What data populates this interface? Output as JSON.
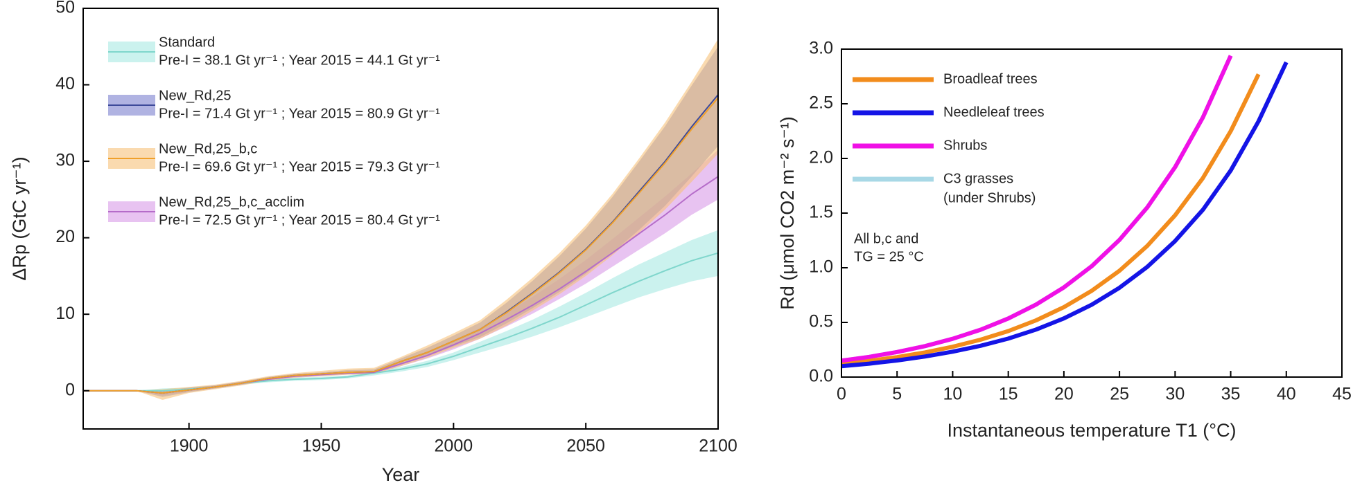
{
  "chart_data": [
    {
      "type": "line",
      "x_label": "Year",
      "y_label": "ΔRp (GtC yr⁻¹)",
      "xlim": [
        1860,
        2100
      ],
      "xticks": [
        1900,
        1950,
        2000,
        2050,
        2100
      ],
      "ylim": [
        -5,
        50
      ],
      "yticks": [
        0,
        10,
        20,
        30,
        40,
        50
      ],
      "x": [
        1860,
        1870,
        1880,
        1890,
        1900,
        1910,
        1920,
        1930,
        1940,
        1950,
        1960,
        1970,
        1980,
        1990,
        2000,
        2010,
        2020,
        2030,
        2040,
        2050,
        2060,
        2070,
        2080,
        2090,
        2100
      ],
      "series": [
        {
          "name": "Standard",
          "description": "Pre-I = 38.1 Gt yr⁻¹ ; Year 2015 = 44.1 Gt yr⁻¹",
          "color": "#7fd6cc",
          "band_color": "#a9e9e3",
          "values": [
            0,
            0,
            0,
            0,
            0.2,
            0.5,
            1.0,
            1.3,
            1.5,
            1.6,
            1.8,
            2.3,
            2.8,
            3.5,
            4.5,
            5.7,
            6.9,
            8.2,
            9.6,
            11.2,
            12.8,
            14.3,
            15.7,
            17.0,
            18.0
          ],
          "lower": [
            0,
            0,
            0,
            -0.5,
            0,
            0.3,
            0.8,
            1.1,
            1.3,
            1.4,
            1.6,
            2.0,
            2.5,
            3.1,
            4.0,
            5.0,
            6.0,
            7.1,
            8.3,
            9.6,
            10.9,
            12.2,
            13.3,
            14.3,
            15.0
          ],
          "upper": [
            0,
            0,
            0,
            0.3,
            0.4,
            0.7,
            1.2,
            1.5,
            1.7,
            1.8,
            2.0,
            2.6,
            3.1,
            3.9,
            5.0,
            6.4,
            7.8,
            9.3,
            11.0,
            12.8,
            14.7,
            16.5,
            18.1,
            19.7,
            21.0
          ]
        },
        {
          "name": "New_Rd,25_b,c_acclim",
          "description": "Pre-I = 72.5 Gt yr⁻¹ ; Year 2015 = 80.4 Gt yr⁻¹",
          "color": "#b56cc9",
          "band_color": "#d99be8",
          "values": [
            0,
            0,
            0,
            -0.3,
            0.1,
            0.5,
            1.0,
            1.5,
            1.9,
            2.1,
            2.3,
            2.4,
            3.5,
            4.6,
            6.0,
            7.5,
            9.3,
            11.2,
            13.3,
            15.6,
            18.0,
            20.5,
            23.0,
            25.7,
            28.0
          ],
          "lower": [
            0,
            0,
            0,
            -0.6,
            -0.1,
            0.3,
            0.8,
            1.3,
            1.7,
            1.9,
            2.1,
            2.2,
            3.2,
            4.2,
            5.4,
            6.8,
            8.4,
            10.1,
            12.0,
            14.0,
            16.2,
            18.4,
            20.6,
            23.0,
            25.0
          ],
          "upper": [
            0,
            0,
            0,
            0,
            0.3,
            0.7,
            1.2,
            1.7,
            2.1,
            2.3,
            2.5,
            2.6,
            3.8,
            5.0,
            6.6,
            8.2,
            10.2,
            12.3,
            14.6,
            17.1,
            19.8,
            22.6,
            25.4,
            28.4,
            31.5
          ]
        },
        {
          "name": "New_Rd,25",
          "description": "Pre-I = 71.4 Gt yr⁻¹ ; Year 2015 = 80.9 Gt yr⁻¹",
          "color": "#3d4a9a",
          "band_color": "#7c80cf",
          "values": [
            0,
            0,
            0,
            -0.3,
            0.1,
            0.5,
            1.0,
            1.6,
            2.0,
            2.2,
            2.4,
            2.5,
            3.8,
            5.0,
            6.5,
            8.0,
            10.3,
            12.8,
            15.5,
            18.5,
            22.0,
            26.0,
            30.0,
            34.5,
            38.7
          ],
          "lower": [
            0,
            0,
            0,
            -0.8,
            -0.2,
            0.3,
            0.8,
            1.4,
            1.8,
            2.0,
            2.2,
            2.3,
            3.4,
            4.5,
            5.8,
            7.0,
            8.8,
            10.8,
            12.9,
            15.3,
            18.0,
            21.0,
            24.2,
            28.0,
            32.0
          ],
          "upper": [
            0,
            0,
            0,
            0,
            0.4,
            0.7,
            1.2,
            1.8,
            2.2,
            2.4,
            2.7,
            2.8,
            4.2,
            5.6,
            7.2,
            8.9,
            11.5,
            14.4,
            17.6,
            21.2,
            25.3,
            29.9,
            34.6,
            39.9,
            45.0
          ]
        },
        {
          "name": "New_Rd,25_b,c",
          "description": "Pre-I = 69.6 Gt yr⁻¹ ; Year 2015 = 79.3 Gt yr⁻¹",
          "color": "#f0a02a",
          "band_color": "#f6c27a",
          "values": [
            0,
            0,
            0,
            -0.3,
            0.1,
            0.5,
            1.0,
            1.6,
            2.0,
            2.2,
            2.4,
            2.5,
            3.8,
            5.0,
            6.5,
            8.0,
            10.2,
            12.7,
            15.4,
            18.4,
            21.9,
            25.8,
            29.8,
            34.2,
            38.3
          ],
          "lower": [
            0,
            0,
            0,
            -1.2,
            -0.3,
            0.2,
            0.7,
            1.3,
            1.7,
            1.9,
            2.1,
            2.2,
            3.2,
            4.3,
            5.6,
            6.8,
            8.5,
            10.5,
            12.6,
            15.0,
            17.7,
            20.6,
            23.7,
            27.3,
            31.0
          ],
          "upper": [
            0,
            0,
            0,
            0.2,
            0.5,
            0.8,
            1.3,
            1.9,
            2.3,
            2.6,
            2.9,
            3.0,
            4.4,
            5.9,
            7.5,
            9.2,
            11.9,
            14.8,
            18.0,
            21.6,
            25.7,
            30.3,
            35.1,
            40.4,
            46.0
          ]
        }
      ]
    },
    {
      "type": "line",
      "x_label": "Instantaneous temperature T1 (°C)",
      "y_label": "Rd (μmol CO2 m⁻² s⁻¹)",
      "annotations": [
        "All b,c and",
        "TG = 25 °C"
      ],
      "xlim": [
        0,
        45
      ],
      "xticks": [
        0,
        5,
        10,
        15,
        20,
        25,
        30,
        35,
        40,
        45
      ],
      "ylim": [
        0,
        3
      ],
      "yticks": [
        {
          "value": 0,
          "label": "0.0"
        },
        0.5,
        {
          "value": 1,
          "label": "1.0"
        },
        1.5,
        {
          "value": 2,
          "label": "2.0"
        },
        2.5,
        {
          "value": 3,
          "label": "3.0"
        }
      ],
      "x": [
        0,
        2.5,
        5,
        7.5,
        10,
        12.5,
        15,
        17.5,
        20,
        22.5,
        25,
        27.5,
        30,
        32.5,
        35,
        37.5,
        40
      ],
      "series": [
        {
          "name": "Broadleaf trees",
          "color": "#f28c1c",
          "values": [
            0.12,
            0.148,
            0.182,
            0.225,
            0.277,
            0.342,
            0.421,
            0.519,
            0.64,
            0.789,
            0.973,
            1.2,
            1.48,
            1.82,
            2.25,
            2.77,
            null
          ]
        },
        {
          "name": "Needleleaf trees",
          "color": "#1414e6",
          "values": [
            0.1,
            0.123,
            0.152,
            0.188,
            0.232,
            0.286,
            0.352,
            0.435,
            0.537,
            0.662,
            0.817,
            1.008,
            1.244,
            1.53,
            1.89,
            2.34,
            2.88
          ]
        },
        {
          "name": "Shrubs",
          "color": "#f010e6",
          "values": [
            0.15,
            0.185,
            0.229,
            0.283,
            0.35,
            0.433,
            0.536,
            0.663,
            0.82,
            1.014,
            1.255,
            1.552,
            1.92,
            2.375,
            2.94,
            null,
            null
          ]
        },
        {
          "name": "C3 grasses",
          "note": "(under Shrubs)",
          "color": "#a8d8e6",
          "values": [
            0.15,
            0.185,
            0.229,
            0.283,
            0.35,
            0.433,
            0.536,
            0.663,
            0.82,
            1.014,
            1.255,
            1.552,
            1.92,
            2.375,
            2.94,
            null,
            null
          ]
        }
      ]
    }
  ]
}
